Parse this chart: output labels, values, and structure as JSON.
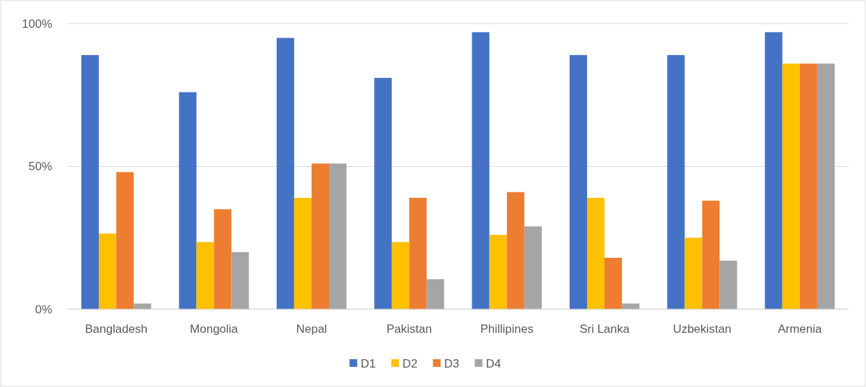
{
  "chart_data": {
    "type": "bar",
    "categories": [
      "Bangladesh",
      "Mongolia",
      "Nepal",
      "Pakistan",
      "Phillipines",
      "Sri Lanka",
      "Uzbekistan",
      "Armenia"
    ],
    "series": [
      {
        "name": "D1",
        "color": "#4472c4",
        "values": [
          89,
          76,
          95,
          81,
          97,
          89,
          89,
          97
        ]
      },
      {
        "name": "D2",
        "color": "#ffc000",
        "values": [
          26.5,
          23.5,
          39,
          23.5,
          26,
          39,
          25,
          86
        ]
      },
      {
        "name": "D3",
        "color": "#ed7d31",
        "values": [
          48,
          35,
          51,
          39,
          41,
          18,
          38,
          86
        ]
      },
      {
        "name": "D4",
        "color": "#a5a5a5",
        "values": [
          2,
          20,
          51,
          10.5,
          29,
          2,
          17,
          86
        ]
      }
    ],
    "ylim": [
      0,
      100
    ],
    "yticks": [
      {
        "value": 0,
        "label": "0%"
      },
      {
        "value": 50,
        "label": "50%"
      },
      {
        "value": 100,
        "label": "100%"
      }
    ],
    "grid": "y",
    "legend": "bottom"
  }
}
